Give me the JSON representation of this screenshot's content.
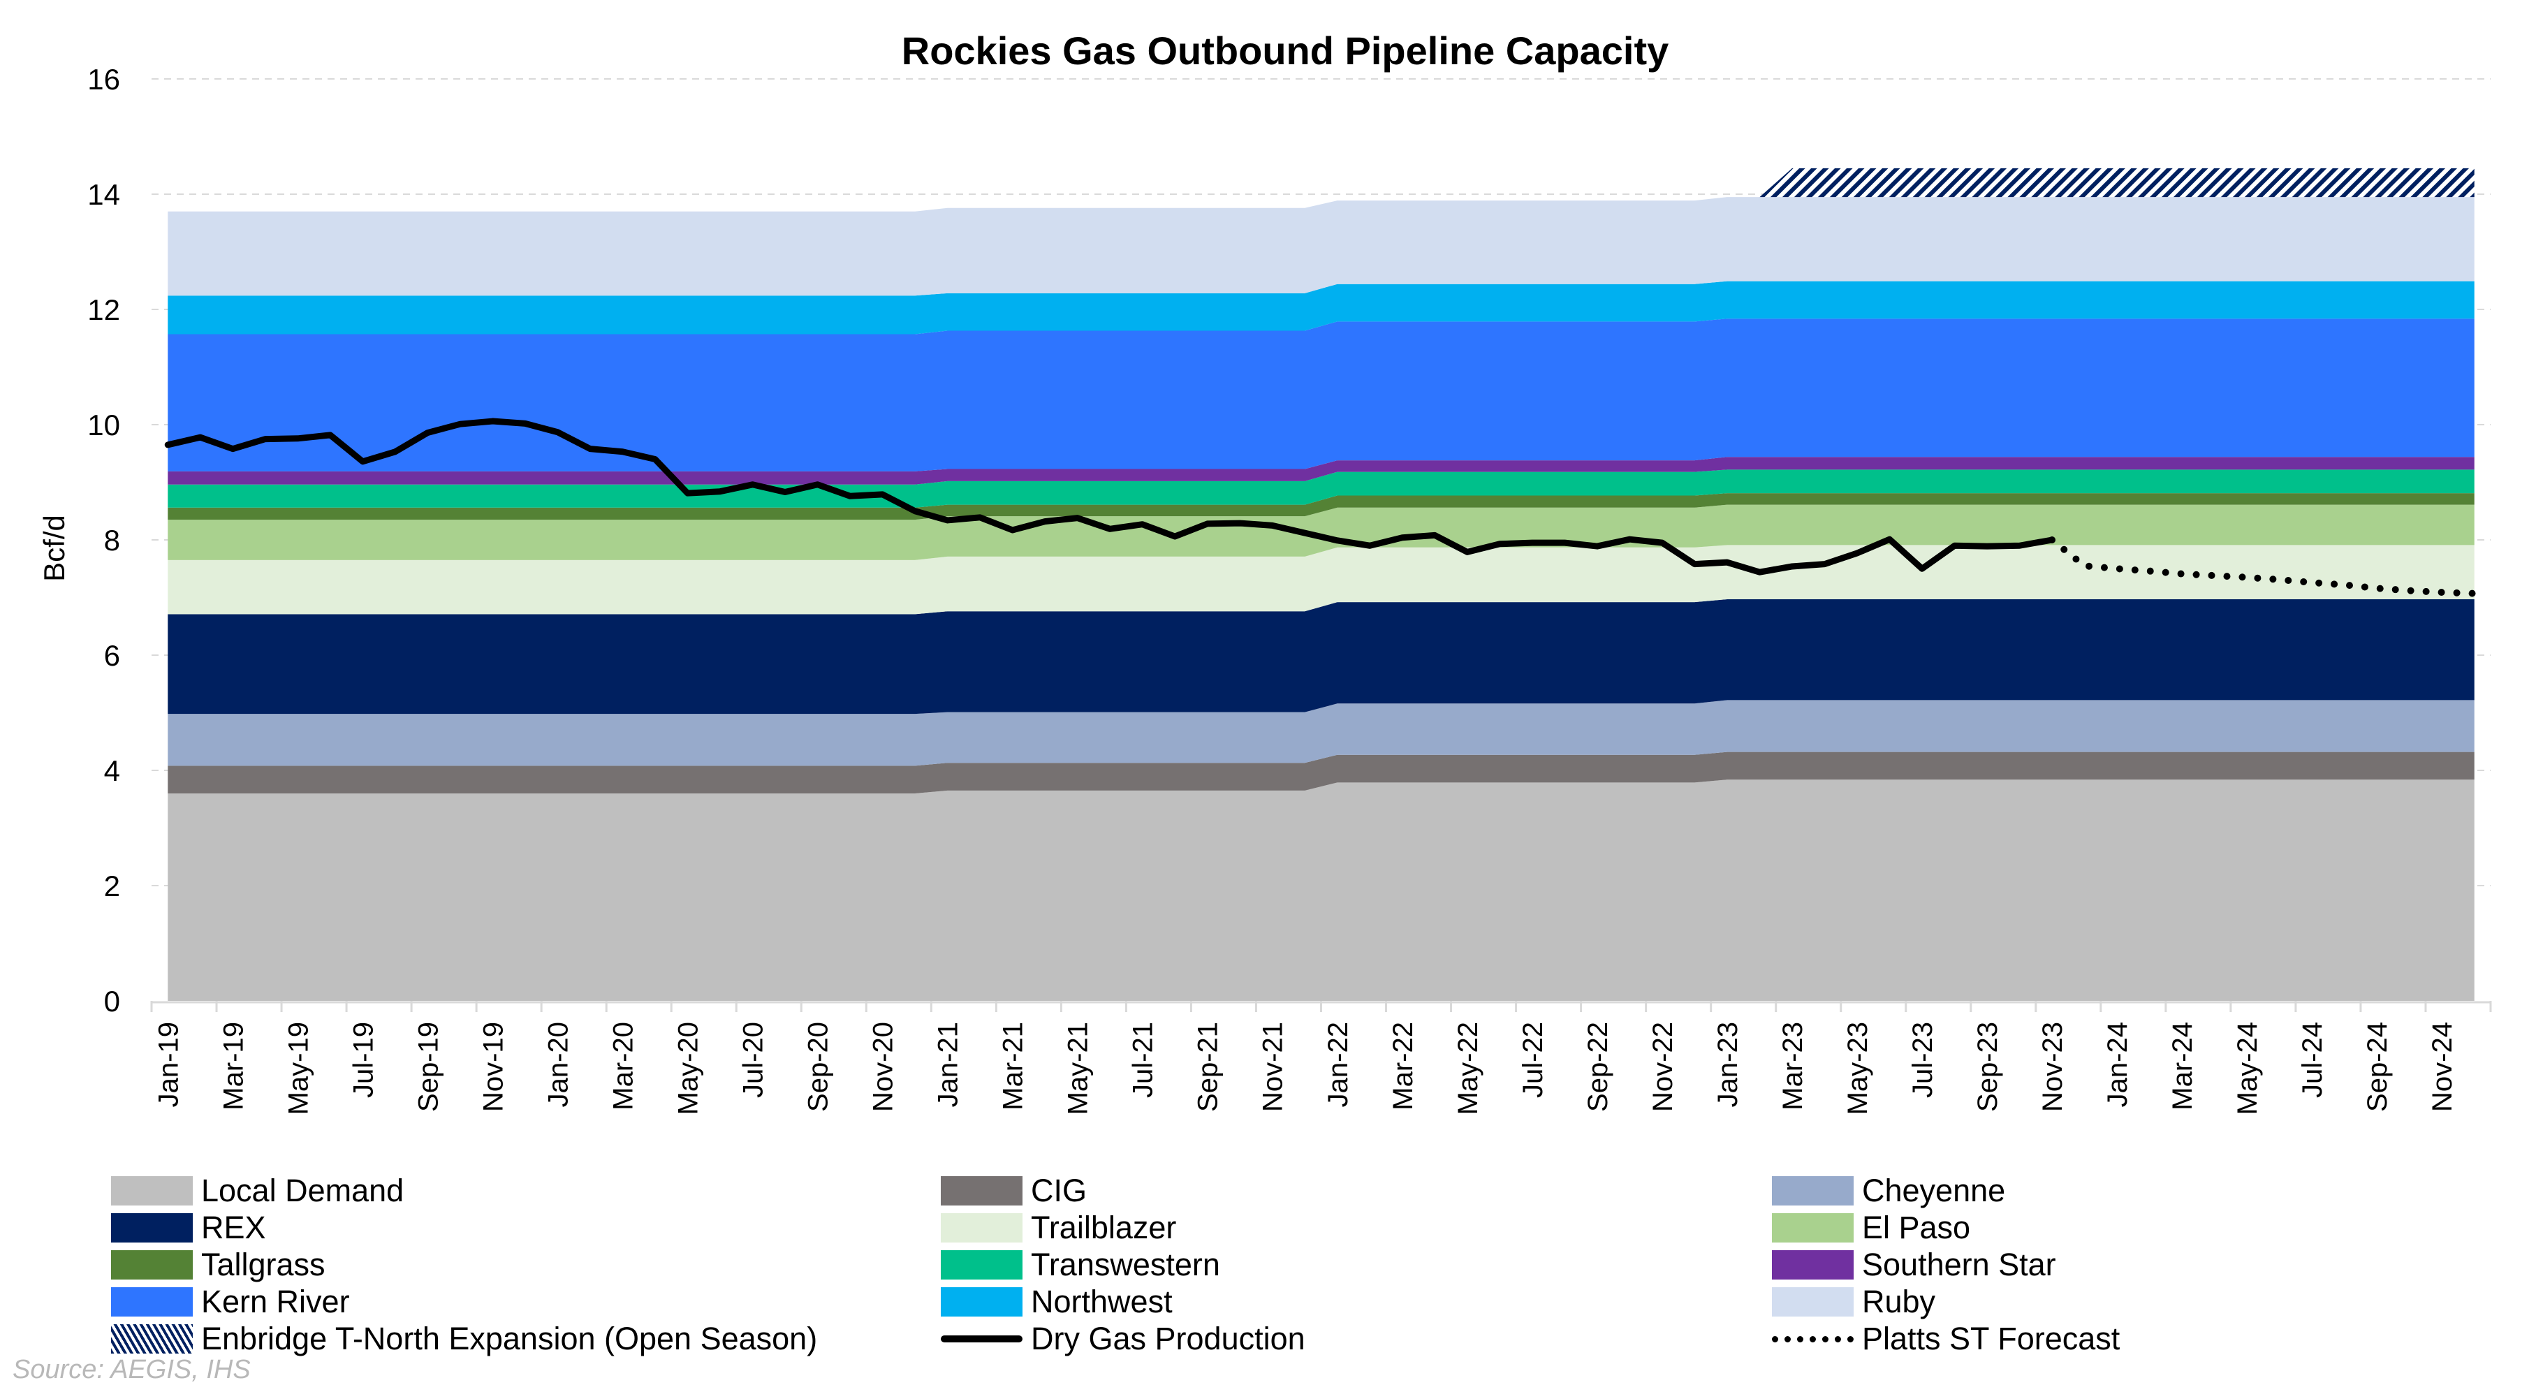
{
  "chart_data": {
    "type": "area",
    "title": "Rockies Gas Outbound Pipeline Capacity",
    "xlabel": "",
    "ylabel": "Bcf/d",
    "ylim": [
      0,
      16
    ],
    "yticks": [
      0,
      2,
      4,
      6,
      8,
      10,
      12,
      14,
      16
    ],
    "grid": true,
    "legend_position": "bottom",
    "start_month": "Jan-19",
    "num_months": 72,
    "years": [
      2019,
      2020,
      2021,
      2022,
      2023,
      2024
    ],
    "x_tick_labels": [
      "Jan-19",
      "Mar-19",
      "May-19",
      "Jul-19",
      "Sep-19",
      "Nov-19",
      "Jan-20",
      "Mar-20",
      "May-20",
      "Jul-20",
      "Sep-20",
      "Nov-20",
      "Jan-21",
      "Mar-21",
      "May-21",
      "Jul-21",
      "Sep-21",
      "Nov-21",
      "Jan-22",
      "Mar-22",
      "May-22",
      "Jul-22",
      "Sep-22",
      "Nov-22",
      "Jan-23",
      "Mar-23",
      "May-23",
      "Jul-23",
      "Sep-23",
      "Nov-23",
      "Jan-24",
      "Mar-24",
      "May-24",
      "Jul-24",
      "Sep-24",
      "Nov-24"
    ],
    "stacked_series": [
      {
        "name": "Local Demand",
        "color": "#bfbfbf",
        "values_by_year": [
          3.6,
          3.6,
          3.65,
          3.79,
          3.84,
          3.84
        ]
      },
      {
        "name": "CIG",
        "color": "#767171",
        "values_by_year": [
          0.48,
          0.48,
          0.48,
          0.48,
          0.48,
          0.48
        ]
      },
      {
        "name": "Cheyenne",
        "color": "#97aacb",
        "values_by_year": [
          0.9,
          0.9,
          0.88,
          0.89,
          0.9,
          0.9
        ]
      },
      {
        "name": "REX",
        "color": "#002060",
        "values_by_year": [
          1.73,
          1.73,
          1.75,
          1.76,
          1.75,
          1.75
        ]
      },
      {
        "name": "Trailblazer",
        "color": "#e2efda",
        "values_by_year": [
          0.94,
          0.94,
          0.95,
          0.95,
          0.94,
          0.94
        ]
      },
      {
        "name": "El Paso",
        "color": "#a9d18e",
        "values_by_year": [
          0.7,
          0.7,
          0.7,
          0.69,
          0.7,
          0.7
        ]
      },
      {
        "name": "Tallgrass",
        "color": "#548235",
        "values_by_year": [
          0.21,
          0.21,
          0.2,
          0.21,
          0.2,
          0.2
        ]
      },
      {
        "name": "Transwestern",
        "color": "#00c08b",
        "values_by_year": [
          0.4,
          0.4,
          0.41,
          0.41,
          0.41,
          0.41
        ]
      },
      {
        "name": "Southern Star",
        "color": "#7030a0",
        "values_by_year": [
          0.23,
          0.23,
          0.21,
          0.2,
          0.22,
          0.22
        ]
      },
      {
        "name": "Kern River",
        "color": "#2e75ff",
        "values_by_year": [
          2.38,
          2.38,
          2.4,
          2.41,
          2.4,
          2.4
        ]
      },
      {
        "name": "Northwest",
        "color": "#00b0f0",
        "values_by_year": [
          0.67,
          0.67,
          0.65,
          0.65,
          0.65,
          0.65
        ]
      },
      {
        "name": "Ruby",
        "color": "#d2ddf0",
        "values_by_year": [
          1.46,
          1.46,
          1.48,
          1.45,
          1.46,
          1.46
        ]
      },
      {
        "name": "Enbridge T-North Expansion (Open Season)",
        "color": "#002060",
        "pattern": "hatch",
        "value": 0.5,
        "from_month": "Mar-23"
      }
    ],
    "lines": [
      {
        "name": "Dry Gas Production",
        "color": "#000000",
        "style": "solid",
        "from_month": "Jan-19",
        "values": [
          9.65,
          9.78,
          9.58,
          9.75,
          9.76,
          9.82,
          9.36,
          9.53,
          9.86,
          10.01,
          10.06,
          10.02,
          9.87,
          9.58,
          9.53,
          9.4,
          8.81,
          8.84,
          8.96,
          8.83,
          8.96,
          8.76,
          8.79,
          8.5,
          8.34,
          8.39,
          8.17,
          8.32,
          8.38,
          8.19,
          8.27,
          8.06,
          8.28,
          8.29,
          8.25,
          8.12,
          7.99,
          7.9,
          8.04,
          8.08,
          7.79,
          7.93,
          7.95,
          7.95,
          7.89,
          8.01,
          7.95,
          7.58,
          7.61,
          7.44,
          7.54,
          7.58,
          7.77,
          8.01,
          7.5,
          7.9,
          7.89,
          7.9,
          8.0
        ]
      },
      {
        "name": "Platts ST Forecast",
        "color": "#000000",
        "style": "dotted",
        "from_month": "Nov-23",
        "values": [
          8.0,
          7.55,
          7.5,
          7.46,
          7.41,
          7.38,
          7.35,
          7.31,
          7.26,
          7.22,
          7.16,
          7.12,
          7.09,
          7.07
        ]
      }
    ],
    "legend": [
      "Local Demand",
      "CIG",
      "Cheyenne",
      "REX",
      "Trailblazer",
      "El Paso",
      "Tallgrass",
      "Transwestern",
      "Southern Star",
      "Kern River",
      "Northwest",
      "Ruby",
      "Enbridge T-North Expansion (Open Season)",
      "Dry Gas Production",
      "Platts ST Forecast"
    ],
    "source": "Source: AEGIS, IHS"
  }
}
